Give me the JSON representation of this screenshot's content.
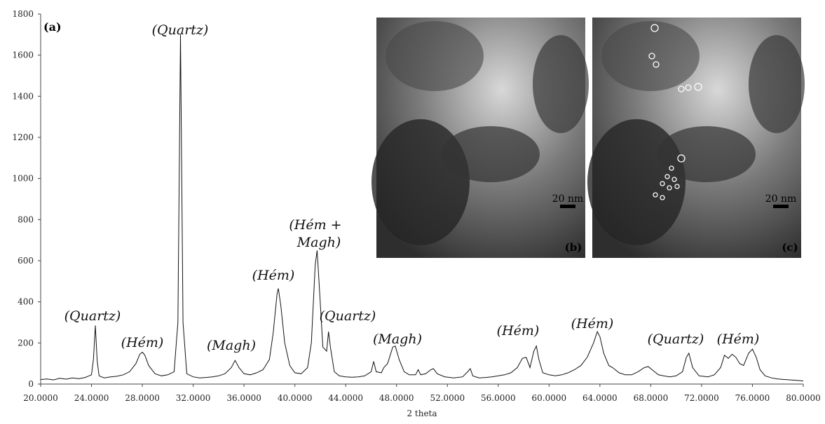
{
  "chart_data": {
    "type": "line",
    "panel_label": "(a)",
    "x_label": "2 theta",
    "color": "#111111",
    "x": [
      20,
      20.5,
      21,
      21.5,
      22,
      22.5,
      23,
      23.5,
      24,
      24.15,
      24.3,
      24.45,
      24.6,
      25,
      25.5,
      26,
      26.5,
      27,
      27.5,
      27.8,
      28,
      28.2,
      28.5,
      29,
      29.5,
      30,
      30.5,
      30.8,
      31,
      31.2,
      31.5,
      32,
      32.5,
      33,
      33.5,
      34,
      34.5,
      35,
      35.3,
      35.6,
      36,
      36.5,
      37,
      37.5,
      38,
      38.3,
      38.6,
      38.7,
      38.9,
      39.2,
      39.6,
      40,
      40.5,
      41,
      41.3,
      41.6,
      41.75,
      41.9,
      42.2,
      42.5,
      42.65,
      42.8,
      43.1,
      43.5,
      44,
      44.5,
      45,
      45.5,
      46,
      46.2,
      46.4,
      46.8,
      47,
      47.3,
      47.7,
      47.9,
      48.2,
      48.6,
      49,
      49.5,
      49.7,
      49.9,
      50.3,
      50.7,
      50.9,
      51.2,
      51.8,
      52.5,
      53.2,
      53.6,
      53.8,
      54,
      54.5,
      55,
      55.5,
      56,
      56.5,
      57,
      57.5,
      57.9,
      58.2,
      58.5,
      58.8,
      59,
      59.2,
      59.5,
      60,
      60.5,
      61,
      61.5,
      62,
      62.5,
      63,
      63.5,
      63.8,
      64,
      64.3,
      64.7,
      65,
      65.5,
      66,
      66.5,
      67,
      67.5,
      67.8,
      68.2,
      68.6,
      69,
      69.5,
      70,
      70.5,
      70.8,
      71,
      71.3,
      71.8,
      72.5,
      73,
      73.5,
      73.8,
      74.1,
      74.4,
      74.7,
      75,
      75.3,
      75.7,
      76,
      76.3,
      76.6,
      77,
      77.5,
      78,
      78.5,
      79,
      79.5,
      80
    ],
    "values": [
      22,
      25,
      20,
      28,
      24,
      30,
      26,
      32,
      45,
      120,
      285,
      110,
      40,
      30,
      35,
      38,
      45,
      60,
      100,
      145,
      155,
      140,
      90,
      50,
      40,
      45,
      60,
      300,
      1700,
      300,
      50,
      35,
      30,
      32,
      35,
      40,
      50,
      80,
      115,
      80,
      50,
      45,
      55,
      70,
      120,
      250,
      440,
      465,
      380,
      200,
      90,
      55,
      50,
      80,
      200,
      580,
      650,
      500,
      180,
      160,
      255,
      180,
      60,
      40,
      35,
      33,
      35,
      40,
      60,
      110,
      60,
      55,
      80,
      100,
      180,
      185,
      120,
      60,
      45,
      45,
      70,
      45,
      50,
      70,
      75,
      50,
      35,
      30,
      35,
      60,
      75,
      40,
      30,
      32,
      35,
      40,
      45,
      55,
      80,
      125,
      130,
      80,
      160,
      185,
      120,
      55,
      45,
      40,
      45,
      55,
      70,
      90,
      130,
      200,
      255,
      230,
      150,
      90,
      80,
      55,
      45,
      45,
      60,
      80,
      85,
      65,
      45,
      40,
      35,
      40,
      60,
      130,
      150,
      80,
      40,
      35,
      45,
      80,
      140,
      125,
      145,
      130,
      100,
      90,
      150,
      170,
      130,
      70,
      40,
      30,
      25,
      22,
      20,
      18,
      15
    ],
    "xlim": [
      20,
      80
    ],
    "xticks": [
      {
        "value": 20,
        "label": "20.0000"
      },
      {
        "value": 24,
        "label": "24.0000"
      },
      {
        "value": 28,
        "label": "28.0000"
      },
      {
        "value": 32,
        "label": "32.0000"
      },
      {
        "value": 36,
        "label": "36.0000"
      },
      {
        "value": 40,
        "label": "40.0000"
      },
      {
        "value": 44,
        "label": "44.0000"
      },
      {
        "value": 48,
        "label": "48.0000"
      },
      {
        "value": 52,
        "label": "52.0000"
      },
      {
        "value": 56,
        "label": "56.0000"
      },
      {
        "value": 60,
        "label": "60.0000"
      },
      {
        "value": 64,
        "label": "64.0000"
      },
      {
        "value": 68,
        "label": "68.0000"
      },
      {
        "value": 72,
        "label": "72.0000"
      },
      {
        "value": 76,
        "label": "76.0000"
      },
      {
        "value": 80,
        "label": "80.0000"
      }
    ],
    "ylim": [
      0,
      1800
    ],
    "yticks": [
      0,
      200,
      400,
      600,
      800,
      1000,
      1200,
      1400,
      1600,
      1800
    ],
    "annotations": [
      "(Quartz)",
      "(Hém)",
      "(Quartz)",
      "(Magh)",
      "(Hém)",
      "(Hém +",
      "Magh)",
      "(Quartz)",
      "(Magh)",
      "(Hém)",
      "(Hém)",
      "(Quartz)",
      "(Hém)"
    ],
    "insets": [
      {
        "label": "(b)",
        "scale": "20 nm"
      },
      {
        "label": "(c)",
        "scale": "20 nm"
      }
    ]
  }
}
